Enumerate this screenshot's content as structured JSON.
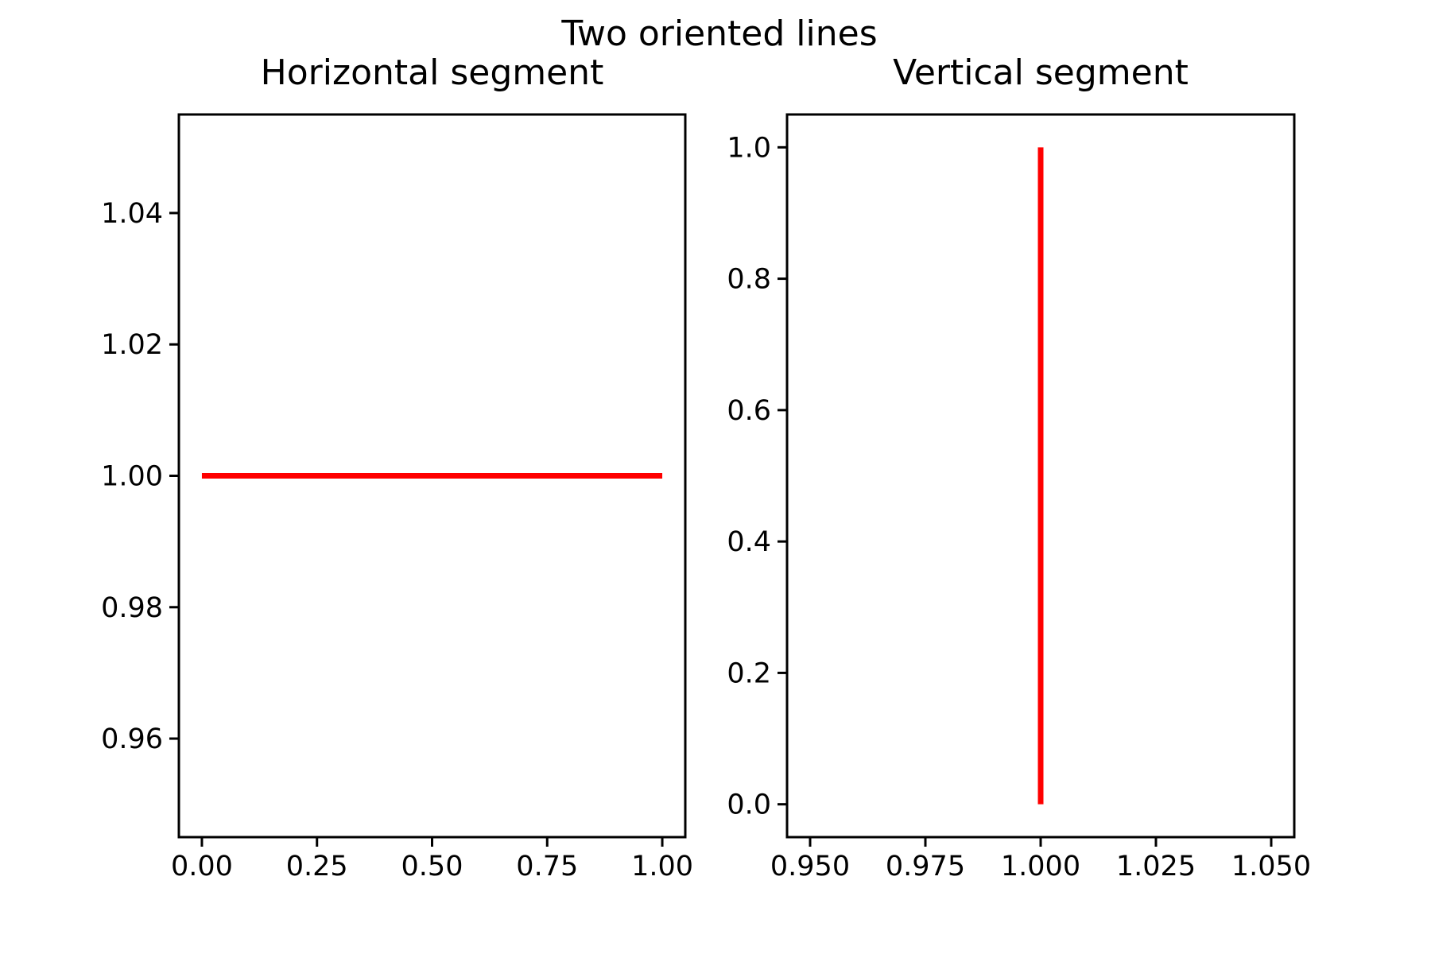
{
  "figure": {
    "title": "Two oriented lines"
  },
  "chart_data": [
    {
      "type": "line",
      "title": "Horizontal segment",
      "xlabel": "",
      "ylabel": "",
      "xlim": [
        -0.05,
        1.05
      ],
      "ylim": [
        0.945,
        1.055
      ],
      "xticks": [
        0.0,
        0.25,
        0.5,
        0.75,
        1.0
      ],
      "xtick_labels": [
        "0.00",
        "0.25",
        "0.50",
        "0.75",
        "1.00"
      ],
      "yticks": [
        0.96,
        0.98,
        1.0,
        1.02,
        1.04
      ],
      "ytick_labels": [
        "0.96",
        "0.98",
        "1.00",
        "1.02",
        "1.04"
      ],
      "grid": false,
      "series": [
        {
          "x": [
            0,
            1
          ],
          "y": [
            1,
            1
          ],
          "color": "#ff0000"
        }
      ]
    },
    {
      "type": "line",
      "title": "Vertical segment",
      "xlabel": "",
      "ylabel": "",
      "xlim": [
        0.945,
        1.055
      ],
      "ylim": [
        -0.05,
        1.05
      ],
      "xticks": [
        0.95,
        0.975,
        1.0,
        1.025,
        1.05
      ],
      "xtick_labels": [
        "0.950",
        "0.975",
        "1.000",
        "1.025",
        "1.050"
      ],
      "yticks": [
        0.0,
        0.2,
        0.4,
        0.6,
        0.8,
        1.0
      ],
      "ytick_labels": [
        "0.0",
        "0.2",
        "0.4",
        "0.6",
        "0.8",
        "1.0"
      ],
      "grid": false,
      "series": [
        {
          "x": [
            1,
            1
          ],
          "y": [
            0,
            1
          ],
          "color": "#ff0000"
        }
      ]
    }
  ]
}
